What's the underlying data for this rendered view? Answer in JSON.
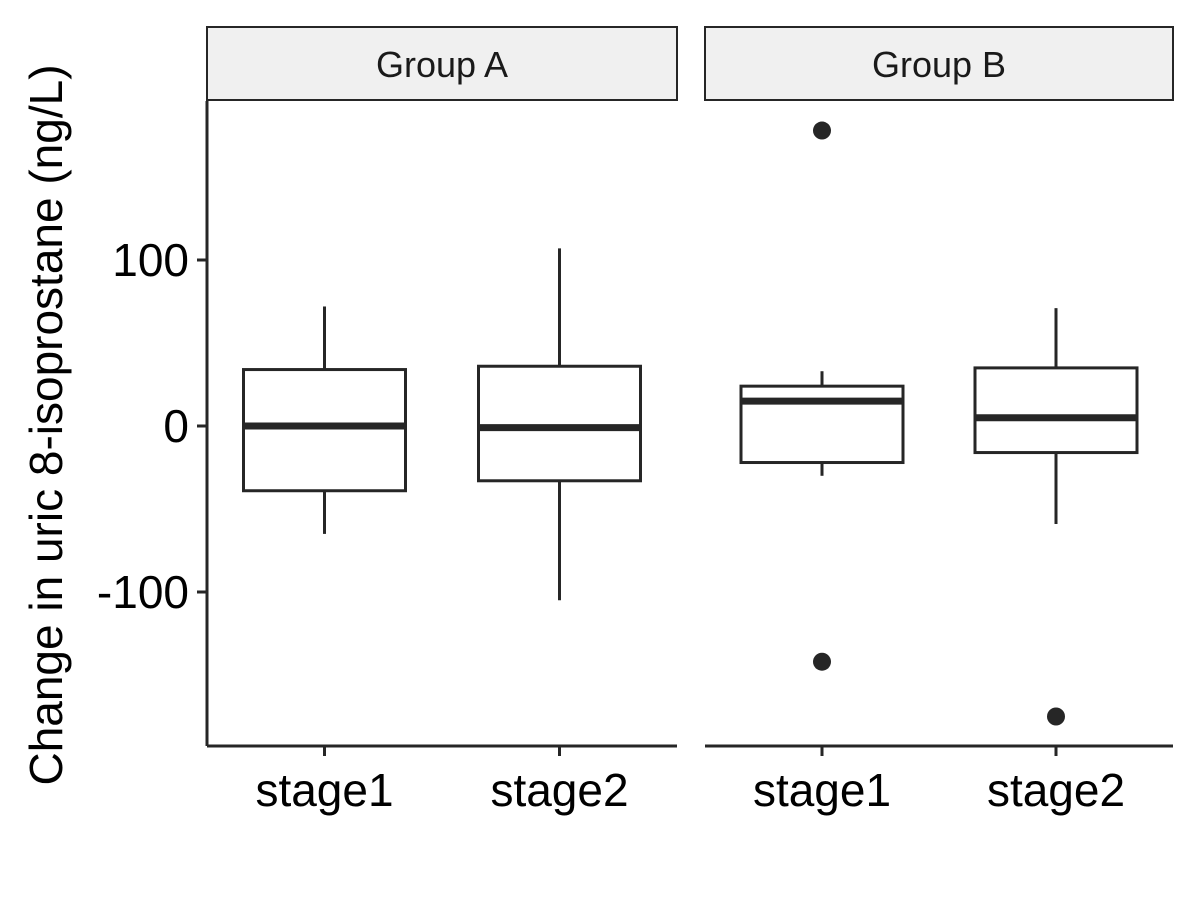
{
  "chart_data": {
    "type": "boxplot",
    "ylabel": "Change in uric 8-isoprostane (ng/L)",
    "xlabel": "",
    "yticks": [
      -100,
      0,
      100
    ],
    "ylim": [
      -190,
      195
    ],
    "grid": false,
    "facets": [
      {
        "name": "Group A",
        "categories": [
          "stage1",
          "stage2"
        ],
        "boxes": [
          {
            "category": "stage1",
            "whisker_low": -65,
            "q1": -39,
            "median": 0,
            "q3": 34,
            "whisker_high": 72,
            "outliers": []
          },
          {
            "category": "stage2",
            "whisker_low": -105,
            "q1": -33,
            "median": -1,
            "q3": 36,
            "whisker_high": 107,
            "outliers": []
          }
        ]
      },
      {
        "name": "Group B",
        "categories": [
          "stage1",
          "stage2"
        ],
        "boxes": [
          {
            "category": "stage1",
            "whisker_low": -30,
            "q1": -22,
            "median": 15,
            "q3": 24,
            "whisker_high": 33,
            "outliers": [
              178,
              -142
            ]
          },
          {
            "category": "stage2",
            "whisker_low": -59,
            "q1": -16,
            "median": 5,
            "q3": 35,
            "whisker_high": 71,
            "outliers": [
              -175
            ]
          }
        ]
      }
    ]
  },
  "colors": {
    "stroke": "#262626",
    "strip_fill": "#f0f0f0",
    "background": "#ffffff"
  }
}
